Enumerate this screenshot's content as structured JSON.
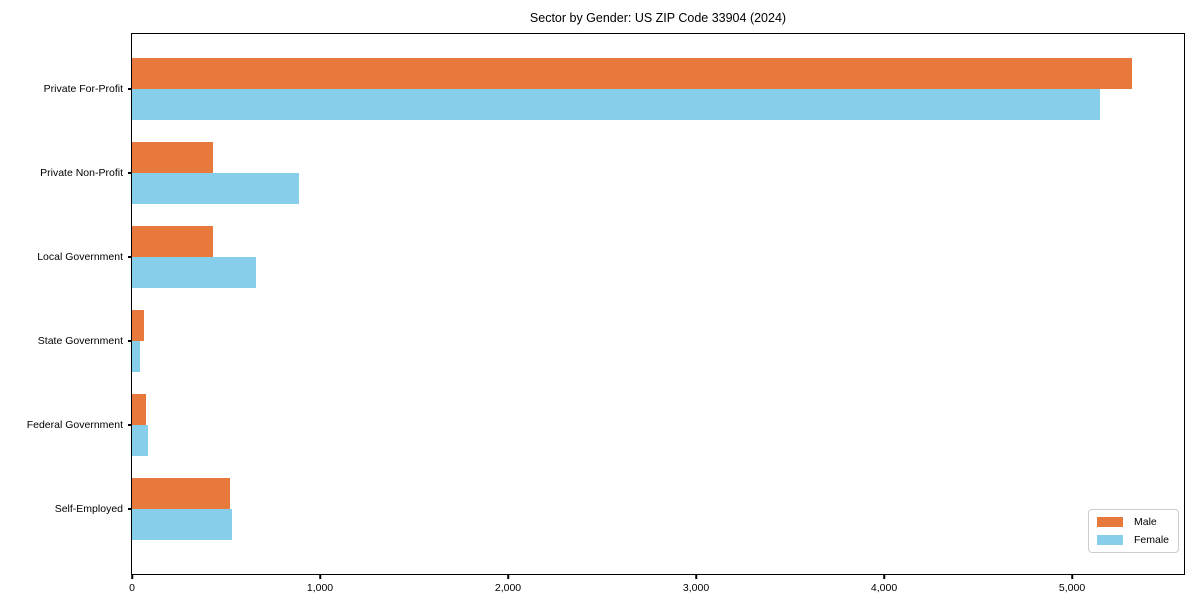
{
  "chart_data": {
    "type": "bar",
    "orientation": "horizontal",
    "title": "Sector by Gender: US ZIP Code 33904 (2024)",
    "xlabel": "",
    "ylabel": "",
    "categories": [
      "Private For-Profit",
      "Private Non-Profit",
      "Local Government",
      "State Government",
      "Federal Government",
      "Self-Employed"
    ],
    "series": [
      {
        "name": "Male",
        "color": "#e8793c",
        "values": [
          5320,
          430,
          430,
          65,
          75,
          520
        ]
      },
      {
        "name": "Female",
        "color": "#87ceeb",
        "values": [
          5150,
          890,
          660,
          45,
          85,
          530
        ]
      }
    ],
    "xlim": [
      0,
      5590
    ],
    "xticks": [
      0,
      1000,
      2000,
      3000,
      4000,
      5000
    ],
    "xtick_labels": [
      "0",
      "1,000",
      "2,000",
      "3,000",
      "4,000",
      "5,000"
    ],
    "grid": false,
    "legend": {
      "position": "lower right",
      "entries": [
        "Male",
        "Female"
      ]
    }
  }
}
